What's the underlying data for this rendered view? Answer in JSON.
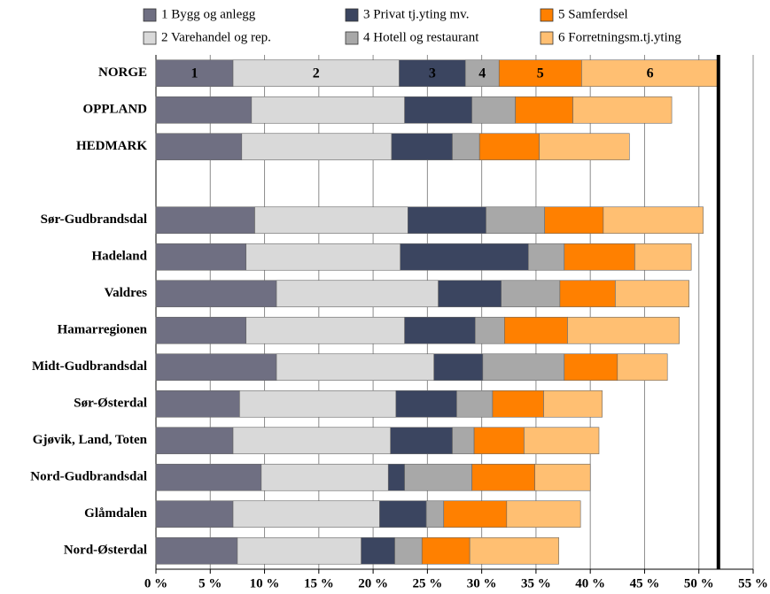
{
  "chart_data": {
    "type": "stacked-bar-horizontal",
    "categories": [
      "NORGE",
      "OPPLAND",
      "HEDMARK",
      null,
      "Sør-Gudbrandsdal",
      "Hadeland",
      "Valdres",
      "Hamarregionen",
      "Midt-Gudbrandsdal",
      "Sør-Østerdal",
      "Gjøvik, Land, Toten",
      "Nord-Gudbrandsdal",
      "Glåmdalen",
      "Nord-Østerdal"
    ],
    "series": [
      {
        "name": "1 Bygg og anlegg",
        "label": "1",
        "color": "#6f6f82",
        "values": [
          7.1,
          8.8,
          7.9,
          null,
          9.1,
          8.3,
          11.1,
          8.3,
          11.1,
          7.7,
          7.1,
          9.7,
          7.1,
          7.5
        ]
      },
      {
        "name": "2 Varehandel og rep.",
        "label": "2",
        "color": "#d9d9d9",
        "values": [
          15.3,
          14.1,
          13.8,
          null,
          14.1,
          14.2,
          14.9,
          14.6,
          14.5,
          14.4,
          14.5,
          11.7,
          13.5,
          11.4
        ]
      },
      {
        "name": "3 Privat tj.yting mv.",
        "label": "3",
        "color": "#3b4560",
        "values": [
          6.1,
          6.2,
          5.6,
          null,
          7.2,
          11.8,
          5.8,
          6.5,
          4.5,
          5.6,
          5.7,
          1.5,
          4.3,
          3.1
        ]
      },
      {
        "name": "4 Hotell og restaurant",
        "label": "4",
        "color": "#a8a8a8",
        "values": [
          3.1,
          4.0,
          2.5,
          null,
          5.4,
          3.3,
          5.4,
          2.7,
          7.5,
          3.3,
          2.0,
          6.2,
          1.6,
          2.5
        ]
      },
      {
        "name": "5 Samferdsel",
        "label": "5",
        "color": "#ff8000",
        "values": [
          7.6,
          5.3,
          5.5,
          null,
          5.4,
          6.5,
          5.1,
          5.8,
          4.9,
          4.7,
          4.6,
          5.8,
          5.8,
          4.4
        ]
      },
      {
        "name": "6 Forretningsm.tj.yting",
        "label": "6",
        "color": "#ffbf72",
        "values": [
          12.6,
          9.1,
          8.3,
          null,
          9.2,
          5.2,
          6.8,
          10.3,
          4.6,
          5.4,
          6.9,
          5.1,
          6.8,
          8.2
        ]
      }
    ],
    "reference_line": 51.8,
    "xlim": [
      0,
      55
    ],
    "xticks": [
      {
        "value": 0,
        "label": "0 %"
      },
      {
        "value": 5,
        "label": "5 %"
      },
      {
        "value": 10,
        "label": "10 %"
      },
      {
        "value": 15,
        "label": "15 %"
      },
      {
        "value": 20,
        "label": "20 %"
      },
      {
        "value": 25,
        "label": "25 %"
      },
      {
        "value": 30,
        "label": "30 %"
      },
      {
        "value": 35,
        "label": "35 %"
      },
      {
        "value": 40,
        "label": "40 %"
      },
      {
        "value": 45,
        "label": "45 %"
      },
      {
        "value": 50,
        "label": "50 %"
      },
      {
        "value": 55,
        "label": "55 %"
      }
    ],
    "grid": true
  }
}
